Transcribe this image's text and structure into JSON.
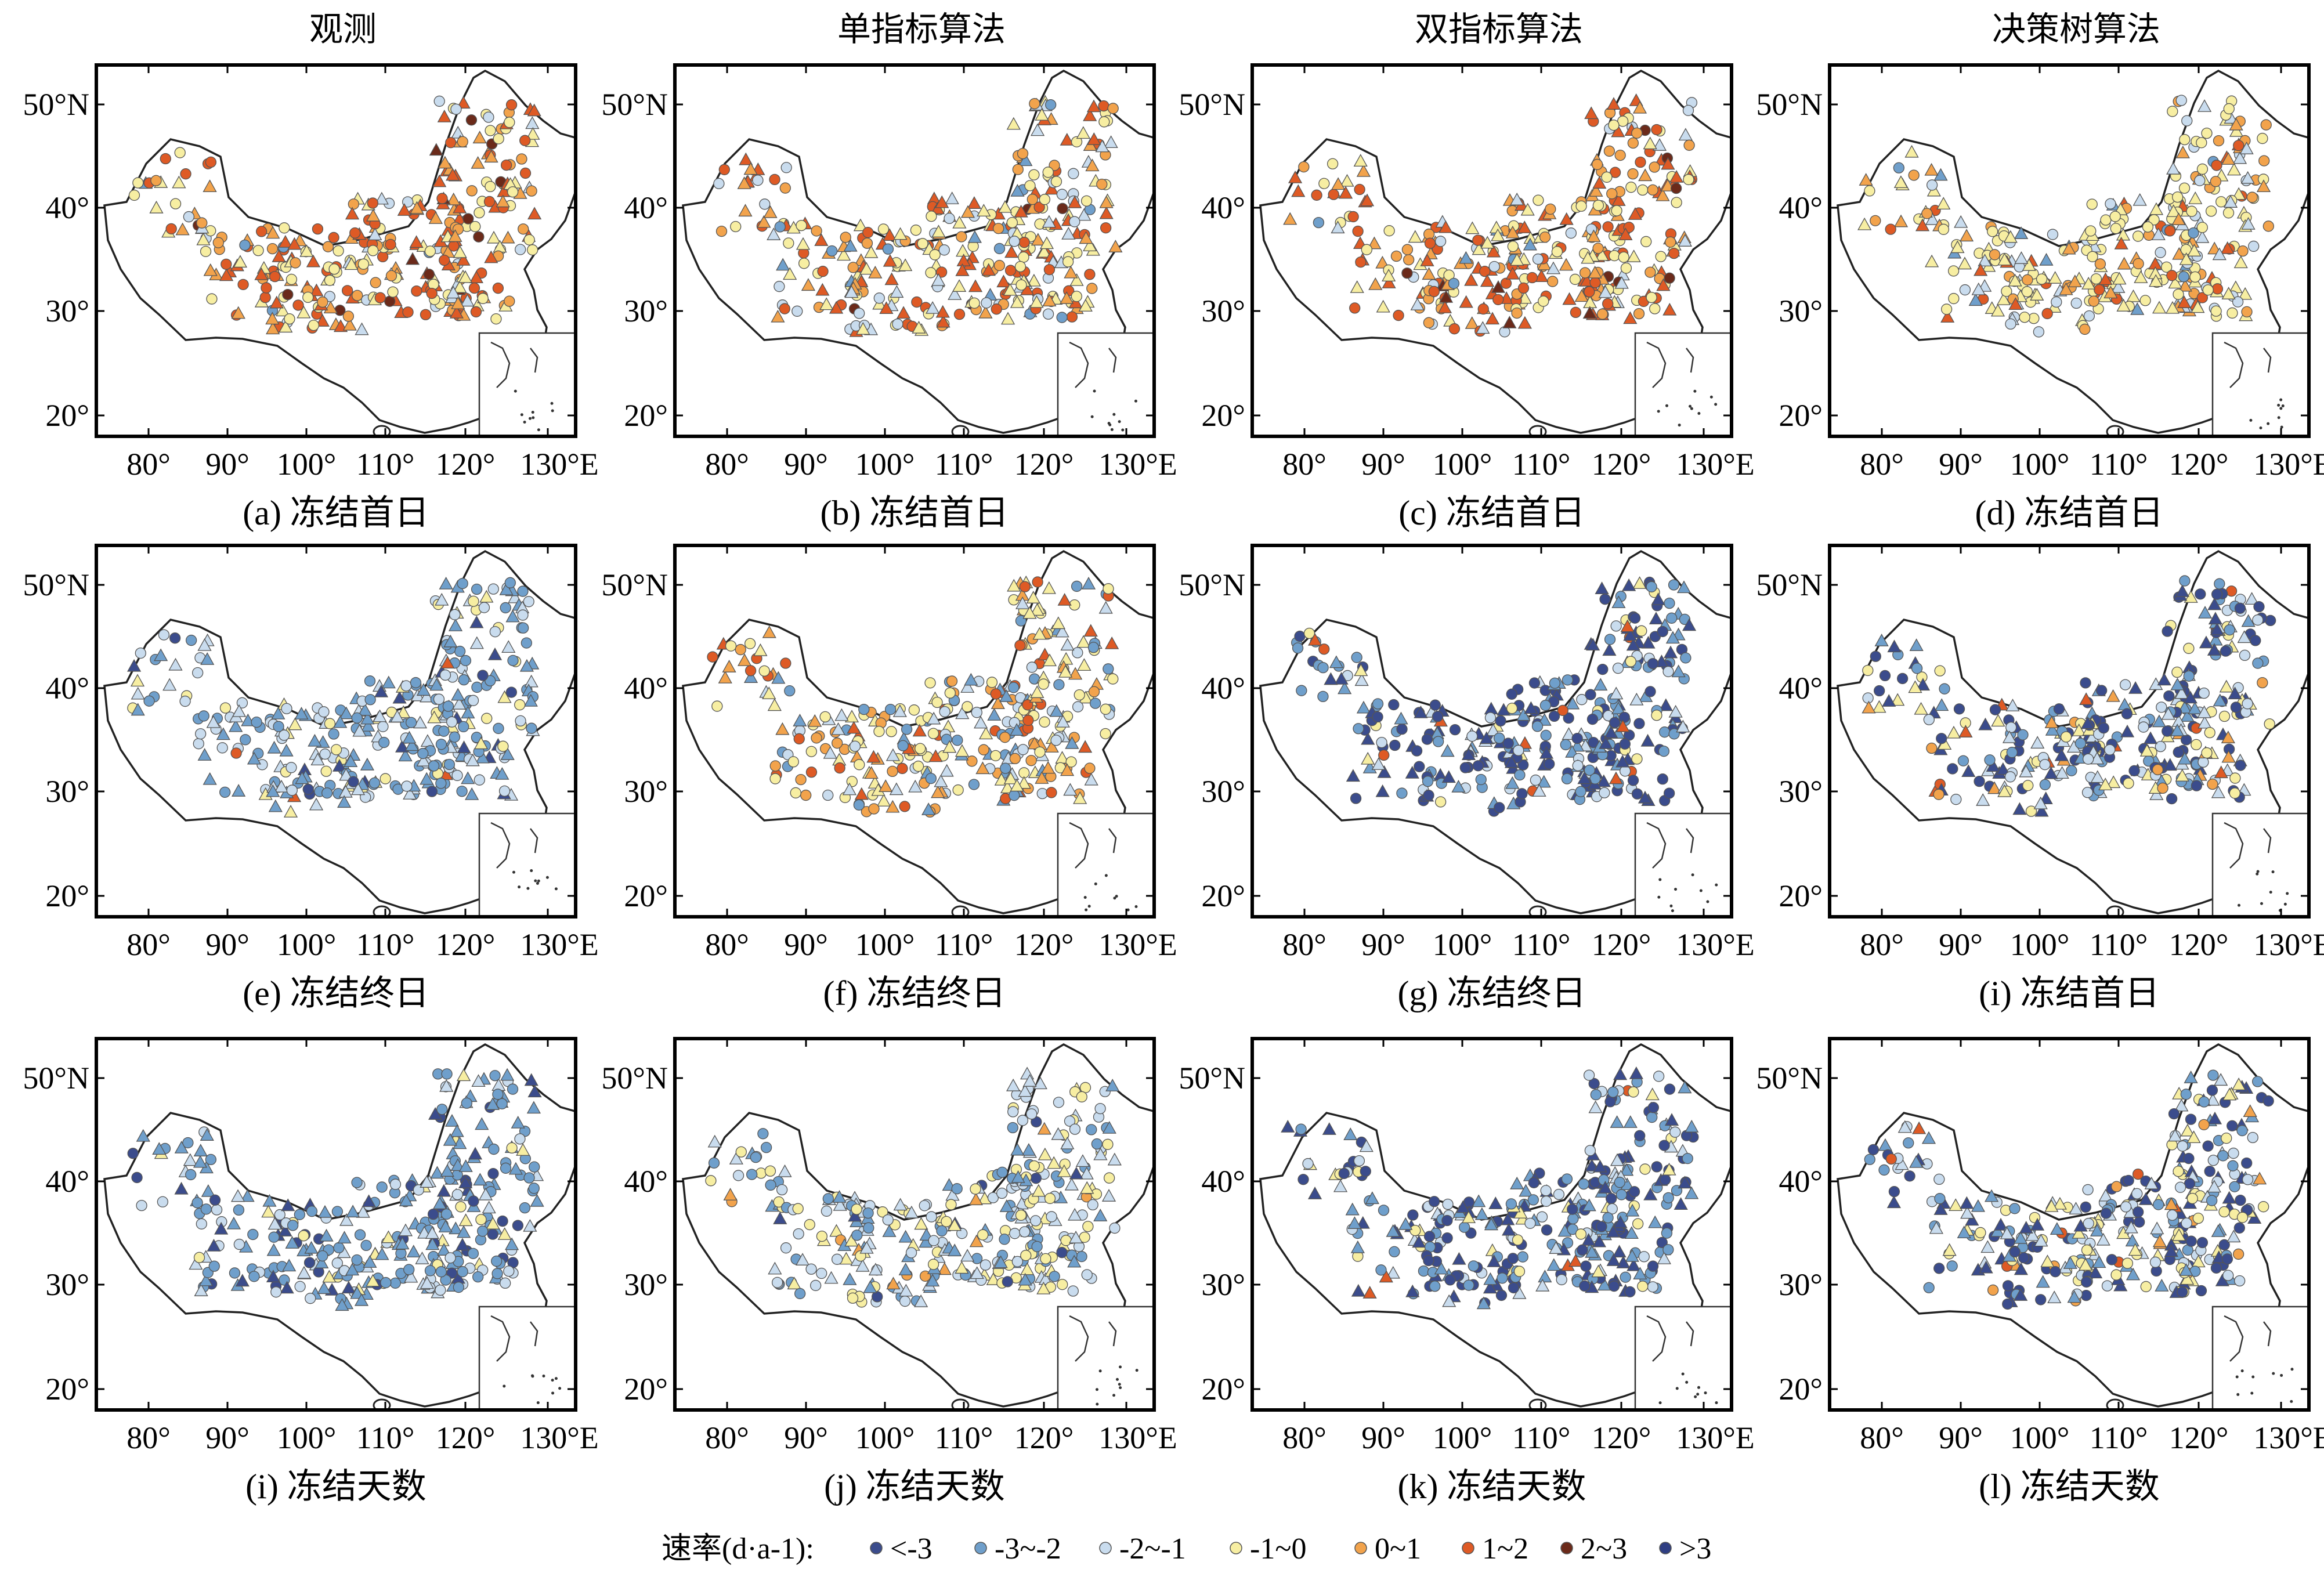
{
  "column_titles": [
    "观测",
    "单指标算法",
    "双指标算法",
    "决策树算法"
  ],
  "lat_ticks": [
    "50°N",
    "40°",
    "30°",
    "20°"
  ],
  "lon_ticks": [
    "80°",
    "90°",
    "100°",
    "110°",
    "120°",
    "130°E"
  ],
  "panels": [
    {
      "caption": "(a) 冻结首日",
      "palette": "warm_obs"
    },
    {
      "caption": "(b) 冻结首日",
      "palette": "warm_mixed"
    },
    {
      "caption": "(c) 冻结首日",
      "palette": "warm_obs"
    },
    {
      "caption": "(d) 冻结首日",
      "palette": "yellow_mixed"
    },
    {
      "caption": "(e) 冻结终日",
      "palette": "light_blue"
    },
    {
      "caption": "(f) 冻结终日",
      "palette": "mixed_orange"
    },
    {
      "caption": "(g) 冻结终日",
      "palette": "dark_blue"
    },
    {
      "caption": "(i) 冻结首日",
      "palette": "dark_blue_mixed"
    },
    {
      "caption": "(i) 冻结天数",
      "palette": "blue_obs"
    },
    {
      "caption": "(j) 冻结天数",
      "palette": "blue_mixed"
    },
    {
      "caption": "(k) 冻结天数",
      "palette": "dark_blue"
    },
    {
      "caption": "(l) 冻结天数",
      "palette": "dark_blue_mixed"
    }
  ],
  "legend": {
    "title": "速率(d·a-1):",
    "items": [
      {
        "label": "<-3",
        "color": "#3b4c8c"
      },
      {
        "label": "-3~-2",
        "color": "#6f9fcb"
      },
      {
        "label": "-2~-1",
        "color": "#c9dcee"
      },
      {
        "label": "-1~0",
        "color": "#f7eea2"
      },
      {
        "label": "0~1",
        "color": "#f2a34c"
      },
      {
        "label": "1~2",
        "color": "#de5a25"
      },
      {
        "label": "2~3",
        "color": "#6b2a1a"
      },
      {
        "label": ">3",
        "color": "#2f3e82"
      }
    ]
  }
}
